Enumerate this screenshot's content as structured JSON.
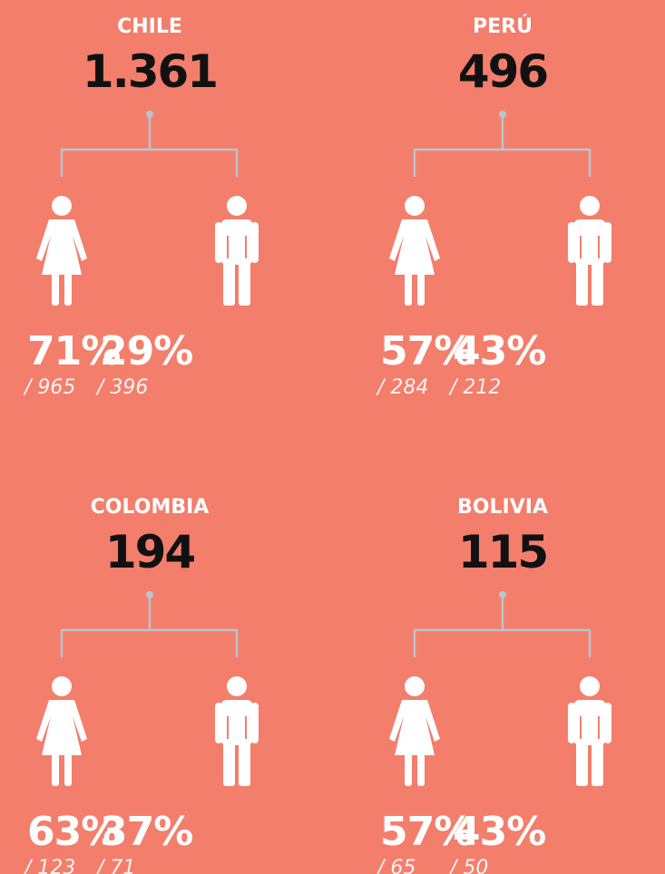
{
  "panels": [
    {
      "country": "CHILE",
      "total": "1.361",
      "female": {
        "percent": "71%",
        "count": "/ 965"
      },
      "male": {
        "percent": "29%",
        "count": "/ 396"
      }
    },
    {
      "country": "PERÚ",
      "total": "496",
      "female": {
        "percent": "57%",
        "count": "/ 284"
      },
      "male": {
        "percent": "43%",
        "count": "/ 212"
      }
    },
    {
      "country": "COLOMBIA",
      "total": "194",
      "female": {
        "percent": "63%",
        "count": "/ 123"
      },
      "male": {
        "percent": "37%",
        "count": "/ 71"
      }
    },
    {
      "country": "BOLIVIA",
      "total": "115",
      "female": {
        "percent": "57%",
        "count": "/ 65"
      },
      "male": {
        "percent": "43%",
        "count": "/ 50"
      }
    }
  ]
}
